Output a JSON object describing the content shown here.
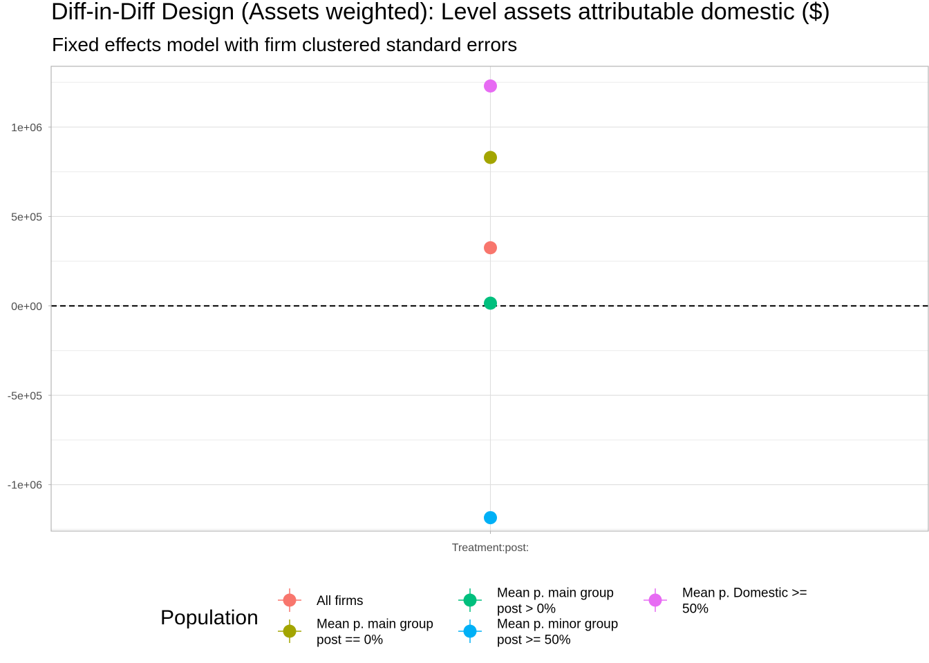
{
  "chart_data": {
    "type": "scatter",
    "title": "Diff-in-Diff Design (Assets weighted): Level assets attributable domestic  ($)",
    "subtitle": "Fixed effects model with firm clustered standard errors",
    "xlabel": "",
    "ylabel": "",
    "categories": [
      "Treatment:post:"
    ],
    "ylim": [
      -1260000,
      1340000
    ],
    "y_ticks": [
      {
        "value": 1000000,
        "label": "1e+06"
      },
      {
        "value": 500000,
        "label": "5e+05"
      },
      {
        "value": 0,
        "label": "0e+00"
      },
      {
        "value": -500000,
        "label": "-5e+05"
      },
      {
        "value": -1000000,
        "label": "-1e+06"
      }
    ],
    "y_minor_ticks": [
      1250000,
      750000,
      250000,
      -250000,
      -750000,
      -1250000
    ],
    "reference_line": {
      "value": 0,
      "style": "dashed"
    },
    "grid": true,
    "legend": {
      "title": "Population",
      "position": "bottom"
    },
    "series": [
      {
        "name": "All firms",
        "color": "#F8766D",
        "category": "Treatment:post:",
        "value": 325000
      },
      {
        "name": "Mean p. main group post == 0%",
        "color": "#A3A500",
        "category": "Treatment:post:",
        "value": 830000
      },
      {
        "name": "Mean p. main group post > 0%",
        "color": "#00BF7D",
        "category": "Treatment:post:",
        "value": 15000
      },
      {
        "name": "Mean p. minor group post >= 50%",
        "color": "#00B0F6",
        "category": "Treatment:post:",
        "value": -1185000
      },
      {
        "name": "Mean p. Domestic >= 50%",
        "color": "#E76BF3",
        "category": "Treatment:post:",
        "value": 1230000
      }
    ]
  }
}
